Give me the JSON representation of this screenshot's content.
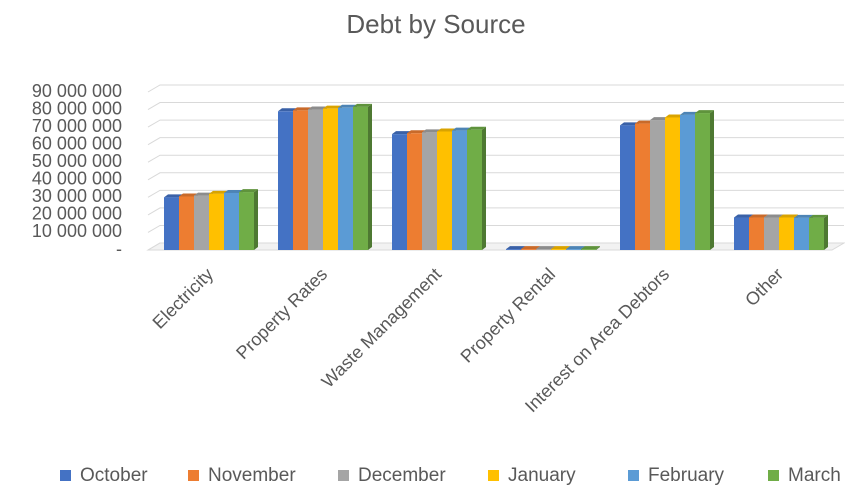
{
  "chart_data": {
    "type": "bar3d",
    "title": "Debt by Source",
    "categories": [
      "Electricity",
      "Property Rates",
      "Waste Management",
      "Property Rental",
      "Interest on Area Debtors",
      "Other"
    ],
    "series": [
      {
        "name": "October",
        "color": "#4472c4",
        "values": [
          30000000,
          79000000,
          66000000,
          500000,
          71000000,
          18500000
        ]
      },
      {
        "name": "November",
        "color": "#ed7d31",
        "values": [
          30500000,
          79500000,
          66500000,
          500000,
          72000000,
          18500000
        ]
      },
      {
        "name": "December",
        "color": "#a5a5a5",
        "values": [
          31000000,
          80000000,
          67000000,
          500000,
          74000000,
          18500000
        ]
      },
      {
        "name": "January",
        "color": "#ffc000",
        "values": [
          32000000,
          80500000,
          67500000,
          500000,
          75500000,
          18500000
        ]
      },
      {
        "name": "February",
        "color": "#5b9bd5",
        "values": [
          32500000,
          81000000,
          68000000,
          500000,
          77000000,
          18300000
        ]
      },
      {
        "name": "March",
        "color": "#70ad47",
        "values": [
          33000000,
          81500000,
          68500000,
          500000,
          78000000,
          18300000
        ]
      }
    ],
    "ylim": [
      0,
      90000000
    ],
    "yticks": [
      {
        "value": 0,
        "label": "-"
      },
      {
        "value": 10000000,
        "label": "10 000 000"
      },
      {
        "value": 20000000,
        "label": "20 000 000"
      },
      {
        "value": 30000000,
        "label": "30 000 000"
      },
      {
        "value": 40000000,
        "label": "40 000 000"
      },
      {
        "value": 50000000,
        "label": "50 000 000"
      },
      {
        "value": 60000000,
        "label": "60 000 000"
      },
      {
        "value": 70000000,
        "label": "70 000 000"
      },
      {
        "value": 80000000,
        "label": "80 000 000"
      },
      {
        "value": 90000000,
        "label": "90 000 000"
      }
    ],
    "grid": true,
    "legend": "bottom"
  }
}
